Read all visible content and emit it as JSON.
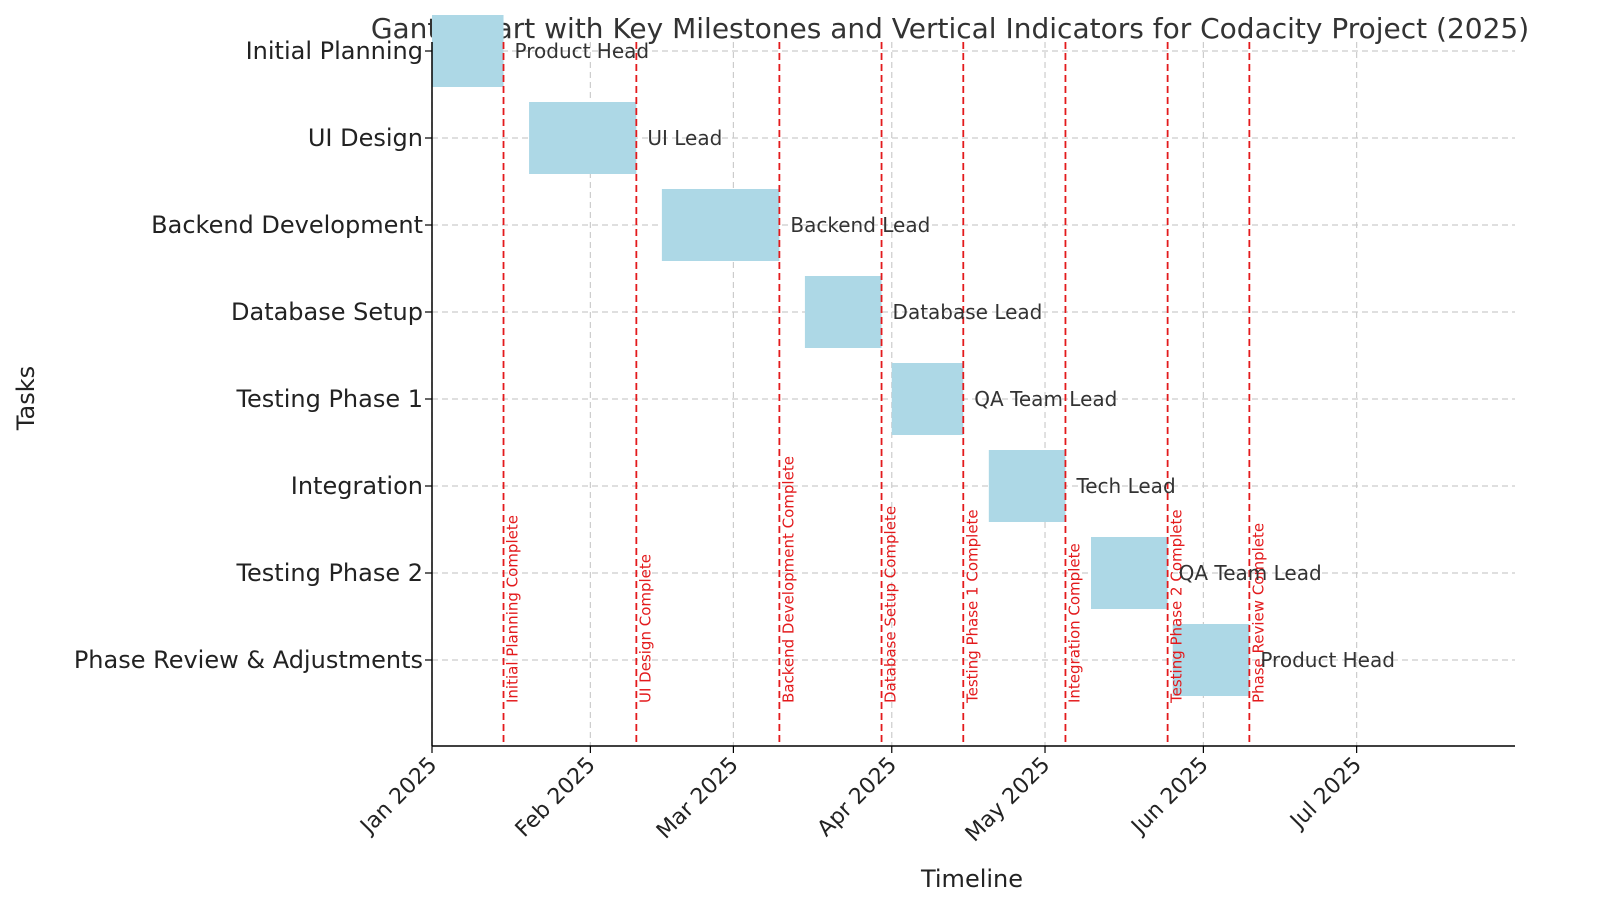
{
  "chart_data": {
    "type": "gantt",
    "title": "Gantt Chart with Key Milestones and Vertical Indicators for Codacity Project (2025)",
    "xlabel": "Timeline",
    "ylabel": "Tasks",
    "x_axis_type": "date",
    "xlim": [
      "2025-01-01",
      "2025-08-01"
    ],
    "x_ticks": [
      {
        "date": "2025-01-01",
        "label": "Jan 2025"
      },
      {
        "date": "2025-02-01",
        "label": "Feb 2025"
      },
      {
        "date": "2025-03-01",
        "label": "Mar 2025"
      },
      {
        "date": "2025-04-01",
        "label": "Apr 2025"
      },
      {
        "date": "2025-05-01",
        "label": "May 2025"
      },
      {
        "date": "2025-06-01",
        "label": "Jun 2025"
      },
      {
        "date": "2025-07-01",
        "label": "Jul 2025"
      }
    ],
    "grid": true,
    "bar_color": "#add8e6",
    "milestone_color": "#e31a1c",
    "tasks": [
      {
        "task": "Initial Planning",
        "start": "2025-01-01",
        "end": "2025-01-15",
        "owner": "Product Head"
      },
      {
        "task": "UI Design",
        "start": "2025-01-20",
        "end": "2025-02-10",
        "owner": "UI Lead"
      },
      {
        "task": "Backend Development",
        "start": "2025-02-15",
        "end": "2025-03-10",
        "owner": "Backend Lead"
      },
      {
        "task": "Database Setup",
        "start": "2025-03-15",
        "end": "2025-03-30",
        "owner": "Database Lead"
      },
      {
        "task": "Testing Phase 1",
        "start": "2025-04-01",
        "end": "2025-04-15",
        "owner": "QA Team Lead"
      },
      {
        "task": "Integration",
        "start": "2025-04-20",
        "end": "2025-05-05",
        "owner": "Tech Lead"
      },
      {
        "task": "Testing Phase 2",
        "start": "2025-05-10",
        "end": "2025-05-25",
        "owner": "QA Team Lead"
      },
      {
        "task": "Phase Review & Adjustments",
        "start": "2025-05-26",
        "end": "2025-06-10",
        "owner": "Product Head"
      }
    ],
    "milestones": [
      {
        "date": "2025-01-15",
        "label": "Initial Planning Complete"
      },
      {
        "date": "2025-02-10",
        "label": "UI Design Complete"
      },
      {
        "date": "2025-03-10",
        "label": "Backend Development Complete"
      },
      {
        "date": "2025-03-30",
        "label": "Database Setup Complete"
      },
      {
        "date": "2025-04-15",
        "label": "Testing Phase 1 Complete"
      },
      {
        "date": "2025-05-05",
        "label": "Integration Complete"
      },
      {
        "date": "2025-05-25",
        "label": "Testing Phase 2 Complete"
      },
      {
        "date": "2025-06-10",
        "label": "Phase Review Complete"
      }
    ]
  }
}
